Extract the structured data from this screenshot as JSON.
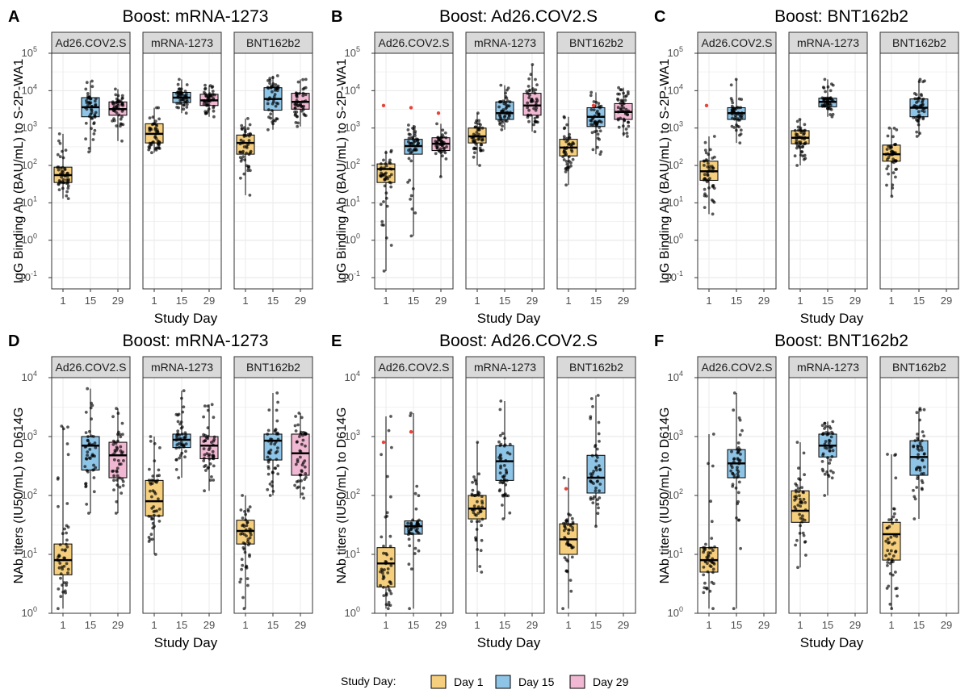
{
  "colors": {
    "Day 1": "#f5cf7d",
    "Day 15": "#8ec4e6",
    "Day 29": "#f0b8d2",
    "outlier": "#e8433a"
  },
  "legend": {
    "title": "Study Day:",
    "items": [
      "Day 1",
      "Day 15",
      "Day 29"
    ]
  },
  "chart_data": [
    {
      "id": "A",
      "type": "box",
      "title": "Boost: mRNA-1273",
      "ylabel": "IgG Binding Ab (BAU/mL) to S-2P-WA1",
      "xlabel": "Study Day",
      "yscale": "log10",
      "ylim": [
        0.05,
        100000
      ],
      "yticks": [
        "10^-1",
        "10^0",
        "10^1",
        "10^2",
        "10^3",
        "10^4",
        "10^5"
      ],
      "x_ticks": [
        "1",
        "15",
        "29"
      ],
      "facets": [
        {
          "label": "Ad26.COV2.S",
          "boxes": [
            {
              "day": "1",
              "q1": 35,
              "median": 55,
              "q3": 90,
              "whisker_low": 13,
              "whisker_high": 700
            },
            {
              "day": "15",
              "q1": 2000,
              "median": 3600,
              "q3": 6500,
              "whisker_low": 230,
              "whisker_high": 18000
            },
            {
              "day": "29",
              "q1": 2200,
              "median": 3200,
              "q3": 5000,
              "whisker_low": 450,
              "whisker_high": 11000
            }
          ]
        },
        {
          "label": "mRNA-1273",
          "boxes": [
            {
              "day": "1",
              "q1": 400,
              "median": 700,
              "q3": 1300,
              "whisker_low": 220,
              "whisker_high": 3500
            },
            {
              "day": "15",
              "q1": 4800,
              "median": 6500,
              "q3": 9000,
              "whisker_low": 2500,
              "whisker_high": 20000
            },
            {
              "day": "29",
              "q1": 4000,
              "median": 5500,
              "q3": 8000,
              "whisker_low": 2000,
              "whisker_high": 14000
            }
          ]
        },
        {
          "label": "BNT162b2",
          "boxes": [
            {
              "day": "1",
              "q1": 200,
              "median": 400,
              "q3": 650,
              "whisker_low": 16,
              "whisker_high": 1800
            },
            {
              "day": "15",
              "q1": 3000,
              "median": 6000,
              "q3": 12000,
              "whisker_low": 900,
              "whisker_high": 25000
            },
            {
              "day": "29",
              "q1": 3200,
              "median": 5000,
              "q3": 8500,
              "whisker_low": 1100,
              "whisker_high": 20000
            }
          ]
        }
      ]
    },
    {
      "id": "B",
      "type": "box",
      "title": "Boost: Ad26.COV2.S",
      "ylabel": "IgG Binding Ab (BAU/mL) to S-2P-WA1",
      "xlabel": "Study Day",
      "yscale": "log10",
      "ylim": [
        0.05,
        100000
      ],
      "yticks": [
        "10^-1",
        "10^0",
        "10^1",
        "10^2",
        "10^3",
        "10^4",
        "10^5"
      ],
      "x_ticks": [
        "1",
        "15",
        "29"
      ],
      "facets": [
        {
          "label": "Ad26.COV2.S",
          "boxes": [
            {
              "day": "1",
              "q1": 35,
              "median": 80,
              "q3": 110,
              "whisker_low": 0.15,
              "whisker_high": 250,
              "outliers": [
                4000
              ]
            },
            {
              "day": "15",
              "q1": 200,
              "median": 330,
              "q3": 500,
              "whisker_low": 1.3,
              "whisker_high": 1200,
              "outliers": [
                3500
              ]
            },
            {
              "day": "29",
              "q1": 250,
              "median": 380,
              "q3": 550,
              "whisker_low": 50,
              "whisker_high": 1300,
              "outliers": [
                2500
              ]
            }
          ]
        },
        {
          "label": "mRNA-1273",
          "boxes": [
            {
              "day": "1",
              "q1": 400,
              "median": 600,
              "q3": 1000,
              "whisker_low": 100,
              "whisker_high": 2500
            },
            {
              "day": "15",
              "q1": 1700,
              "median": 2500,
              "q3": 5000,
              "whisker_low": 900,
              "whisker_high": 14000
            },
            {
              "day": "29",
              "q1": 2200,
              "median": 4000,
              "q3": 8500,
              "whisker_low": 800,
              "whisker_high": 50000
            }
          ]
        },
        {
          "label": "BNT162b2",
          "boxes": [
            {
              "day": "1",
              "q1": 180,
              "median": 300,
              "q3": 500,
              "whisker_low": 30,
              "whisker_high": 2000
            },
            {
              "day": "15",
              "q1": 1100,
              "median": 2000,
              "q3": 3500,
              "whisker_low": 200,
              "whisker_high": 9000,
              "outliers": [
                4000
              ]
            },
            {
              "day": "29",
              "q1": 1700,
              "median": 2700,
              "q3": 4500,
              "whisker_low": 600,
              "whisker_high": 12000
            }
          ]
        }
      ]
    },
    {
      "id": "C",
      "type": "box",
      "title": "Boost: BNT162b2",
      "ylabel": "IgG Binding Ab (BAU/mL) to S-2P-WA1",
      "xlabel": "Study Day",
      "yscale": "log10",
      "ylim": [
        0.05,
        100000
      ],
      "yticks": [
        "10^-1",
        "10^0",
        "10^1",
        "10^2",
        "10^3",
        "10^4",
        "10^5"
      ],
      "x_ticks": [
        "1",
        "15",
        "29"
      ],
      "facets": [
        {
          "label": "Ad26.COV2.S",
          "boxes": [
            {
              "day": "1",
              "q1": 40,
              "median": 70,
              "q3": 130,
              "whisker_low": 5,
              "whisker_high": 600,
              "outliers": [
                4000
              ]
            },
            {
              "day": "15",
              "q1": 1700,
              "median": 2500,
              "q3": 3500,
              "whisker_low": 400,
              "whisker_high": 20000
            }
          ]
        },
        {
          "label": "mRNA-1273",
          "boxes": [
            {
              "day": "1",
              "q1": 380,
              "median": 550,
              "q3": 850,
              "whisker_low": 100,
              "whisker_high": 1700
            },
            {
              "day": "15",
              "q1": 3700,
              "median": 5000,
              "q3": 6300,
              "whisker_low": 2000,
              "whisker_high": 20000
            }
          ]
        },
        {
          "label": "BNT162b2",
          "boxes": [
            {
              "day": "1",
              "q1": 130,
              "median": 200,
              "q3": 350,
              "whisker_low": 15,
              "whisker_high": 1000
            },
            {
              "day": "15",
              "q1": 2000,
              "median": 3500,
              "q3": 6000,
              "whisker_low": 600,
              "whisker_high": 20000
            }
          ]
        }
      ]
    },
    {
      "id": "D",
      "type": "box",
      "title": "Boost: mRNA-1273",
      "ylabel": "NAb titers (IU50/mL) to D614G",
      "xlabel": "Study Day",
      "yscale": "log10",
      "ylim": [
        1,
        10000
      ],
      "yticks": [
        "10^0",
        "10^1",
        "10^2",
        "10^3",
        "10^4"
      ],
      "x_ticks": [
        "1",
        "15",
        "29"
      ],
      "facets": [
        {
          "label": "Ad26.COV2.S",
          "boxes": [
            {
              "day": "1",
              "q1": 4.5,
              "median": 8,
              "q3": 15,
              "whisker_low": 1.2,
              "whisker_high": 1500
            },
            {
              "day": "15",
              "q1": 270,
              "median": 700,
              "q3": 1000,
              "whisker_low": 50,
              "whisker_high": 6500
            },
            {
              "day": "29",
              "q1": 200,
              "median": 480,
              "q3": 800,
              "whisker_low": 50,
              "whisker_high": 3000
            }
          ]
        },
        {
          "label": "mRNA-1273",
          "boxes": [
            {
              "day": "1",
              "q1": 45,
              "median": 80,
              "q3": 180,
              "whisker_low": 10,
              "whisker_high": 1000
            },
            {
              "day": "15",
              "q1": 650,
              "median": 880,
              "q3": 1100,
              "whisker_low": 200,
              "whisker_high": 6000
            },
            {
              "day": "29",
              "q1": 420,
              "median": 700,
              "q3": 1000,
              "whisker_low": 120,
              "whisker_high": 3500
            }
          ]
        },
        {
          "label": "BNT162b2",
          "boxes": [
            {
              "day": "1",
              "q1": 15,
              "median": 25,
              "q3": 38,
              "whisker_low": 1.2,
              "whisker_high": 100
            },
            {
              "day": "15",
              "q1": 400,
              "median": 850,
              "q3": 1100,
              "whisker_low": 100,
              "whisker_high": 5500
            },
            {
              "day": "29",
              "q1": 220,
              "median": 520,
              "q3": 1100,
              "whisker_low": 90,
              "whisker_high": 2500
            }
          ]
        }
      ]
    },
    {
      "id": "E",
      "type": "box",
      "title": "Boost: Ad26.COV2.S",
      "ylabel": "NAb titers (IU50/mL) to D614G",
      "xlabel": "Study Day",
      "yscale": "log10",
      "ylim": [
        1,
        10000
      ],
      "yticks": [
        "10^0",
        "10^1",
        "10^2",
        "10^3",
        "10^4"
      ],
      "x_ticks": [
        "1",
        "15",
        "29"
      ],
      "facets": [
        {
          "label": "Ad26.COV2.S",
          "boxes": [
            {
              "day": "1",
              "q1": 2.8,
              "median": 7,
              "q3": 13,
              "whisker_low": 1.2,
              "whisker_high": 2200,
              "outliers": [
                800
              ]
            },
            {
              "day": "15",
              "q1": 22,
              "median": 30,
              "q3": 37,
              "whisker_low": 1.2,
              "whisker_high": 2500,
              "outliers": [
                1200
              ]
            }
          ]
        },
        {
          "label": "mRNA-1273",
          "boxes": [
            {
              "day": "1",
              "q1": 40,
              "median": 60,
              "q3": 100,
              "whisker_low": 5,
              "whisker_high": 800
            },
            {
              "day": "15",
              "q1": 180,
              "median": 380,
              "q3": 700,
              "whisker_low": 40,
              "whisker_high": 4000
            }
          ]
        },
        {
          "label": "BNT162b2",
          "boxes": [
            {
              "day": "1",
              "q1": 10,
              "median": 18,
              "q3": 33,
              "whisker_low": 1.2,
              "whisker_high": 200,
              "outliers": [
                130
              ]
            },
            {
              "day": "15",
              "q1": 110,
              "median": 200,
              "q3": 480,
              "whisker_low": 30,
              "whisker_high": 5000
            }
          ]
        }
      ]
    },
    {
      "id": "F",
      "type": "box",
      "title": "Boost: BNT162b2",
      "ylabel": "NAb titers (IU50/mL) to D614G",
      "xlabel": "Study Day",
      "yscale": "log10",
      "ylim": [
        1,
        10000
      ],
      "yticks": [
        "10^0",
        "10^1",
        "10^2",
        "10^3",
        "10^4"
      ],
      "x_ticks": [
        "1",
        "15",
        "29"
      ],
      "facets": [
        {
          "label": "Ad26.COV2.S",
          "boxes": [
            {
              "day": "1",
              "q1": 5,
              "median": 8,
              "q3": 13,
              "whisker_low": 1.2,
              "whisker_high": 1100
            },
            {
              "day": "15",
              "q1": 200,
              "median": 350,
              "q3": 600,
              "whisker_low": 1.2,
              "whisker_high": 5500
            }
          ]
        },
        {
          "label": "mRNA-1273",
          "boxes": [
            {
              "day": "1",
              "q1": 35,
              "median": 55,
              "q3": 120,
              "whisker_low": 6,
              "whisker_high": 800
            },
            {
              "day": "15",
              "q1": 450,
              "median": 700,
              "q3": 1100,
              "whisker_low": 100,
              "whisker_high": 1800
            }
          ]
        },
        {
          "label": "BNT162b2",
          "boxes": [
            {
              "day": "1",
              "q1": 8,
              "median": 22,
              "q3": 35,
              "whisker_low": 1.2,
              "whisker_high": 500
            },
            {
              "day": "15",
              "q1": 220,
              "median": 450,
              "q3": 850,
              "whisker_low": 40,
              "whisker_high": 3000
            }
          ]
        }
      ]
    }
  ]
}
